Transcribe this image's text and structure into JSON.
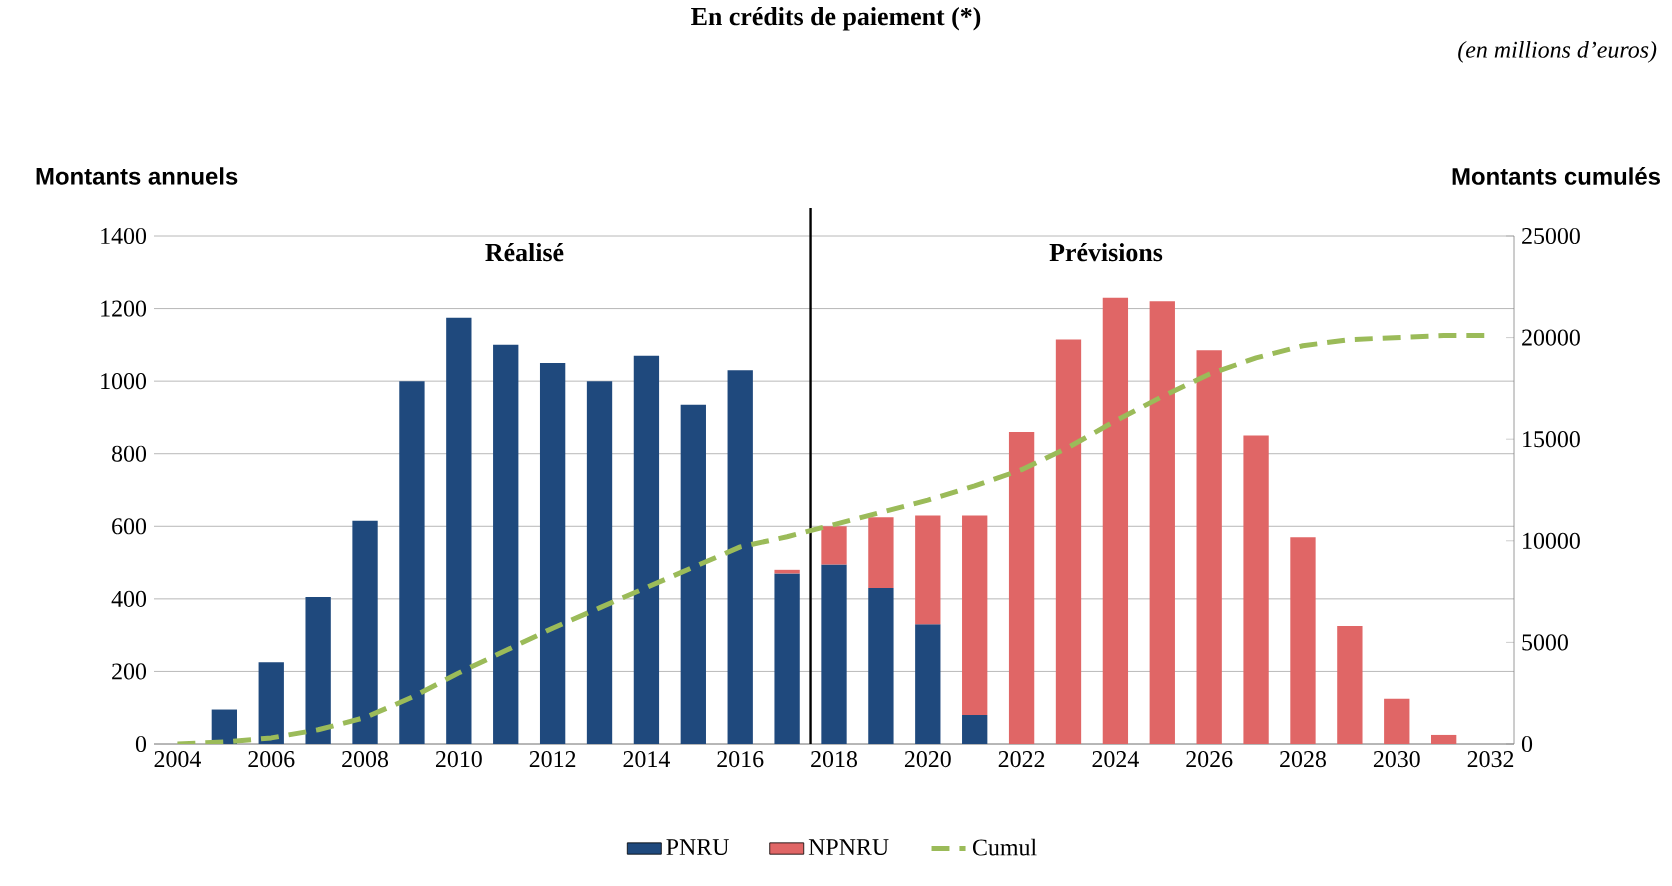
{
  "chart_data": {
    "type": "bar",
    "stacked": true,
    "title": "En crédits de paiement (*)",
    "subtitle": "(en millions d’euros)",
    "ylabel": "Montants annuels",
    "y2label": "Montants cumulés",
    "annotations": [
      "Réalisé",
      "Prévisions"
    ],
    "xlim": [
      2003.5,
      2032.5
    ],
    "xticks": [
      2004,
      2006,
      2008,
      2010,
      2012,
      2014,
      2016,
      2018,
      2020,
      2022,
      2024,
      2026,
      2028,
      2030,
      2032
    ],
    "ylim": [
      0,
      1400
    ],
    "yticks": [
      0,
      200,
      400,
      600,
      800,
      1000,
      1200,
      1400
    ],
    "y2lim": [
      0,
      25000
    ],
    "y2ticks": [
      0,
      5000,
      10000,
      15000,
      20000,
      25000
    ],
    "grid": "y",
    "legend": "bottom",
    "x": [
      2005,
      2006,
      2007,
      2008,
      2009,
      2010,
      2011,
      2012,
      2013,
      2014,
      2015,
      2016,
      2017,
      2018,
      2019,
      2020,
      2021,
      2022,
      2023,
      2024,
      2025,
      2026,
      2027,
      2028,
      2029,
      2030,
      2031
    ],
    "ref_lines": [
      {
        "axis": "x",
        "value": 2017.5,
        "color": "#000000"
      }
    ],
    "series": [
      {
        "name": "PNRU",
        "color": "#1f497d",
        "values": [
          95,
          225,
          405,
          615,
          1000,
          1175,
          1100,
          1050,
          1000,
          1070,
          935,
          1030,
          470,
          495,
          430,
          330,
          80,
          null,
          null,
          null,
          null,
          null,
          null,
          null,
          null,
          null,
          null
        ]
      },
      {
        "name": "NPNRU",
        "color": "#e06666",
        "values": [
          null,
          null,
          null,
          null,
          null,
          null,
          null,
          null,
          null,
          null,
          null,
          null,
          10,
          105,
          195,
          300,
          550,
          860,
          1115,
          1230,
          1220,
          1085,
          850,
          570,
          325,
          125,
          25
        ]
      },
      {
        "name": "Cumul",
        "type": "line",
        "axis": "y2",
        "line_style": "dashed",
        "color": "#9bbb59",
        "x": [
          2004,
          2005,
          2006,
          2007,
          2008,
          2009,
          2010,
          2011,
          2012,
          2013,
          2014,
          2015,
          2016,
          2017,
          2018,
          2019,
          2020,
          2021,
          2022,
          2023,
          2024,
          2025,
          2026,
          2027,
          2028,
          2029,
          2030,
          2031,
          2032
        ],
        "values": [
          0,
          100,
          300,
          700,
          1300,
          2300,
          3500,
          4600,
          5700,
          6700,
          7700,
          8700,
          9700,
          10200,
          10800,
          11400,
          12000,
          12700,
          13500,
          14600,
          15900,
          17100,
          18200,
          19000,
          19600,
          19900,
          20000,
          20100,
          20100
        ]
      }
    ]
  }
}
